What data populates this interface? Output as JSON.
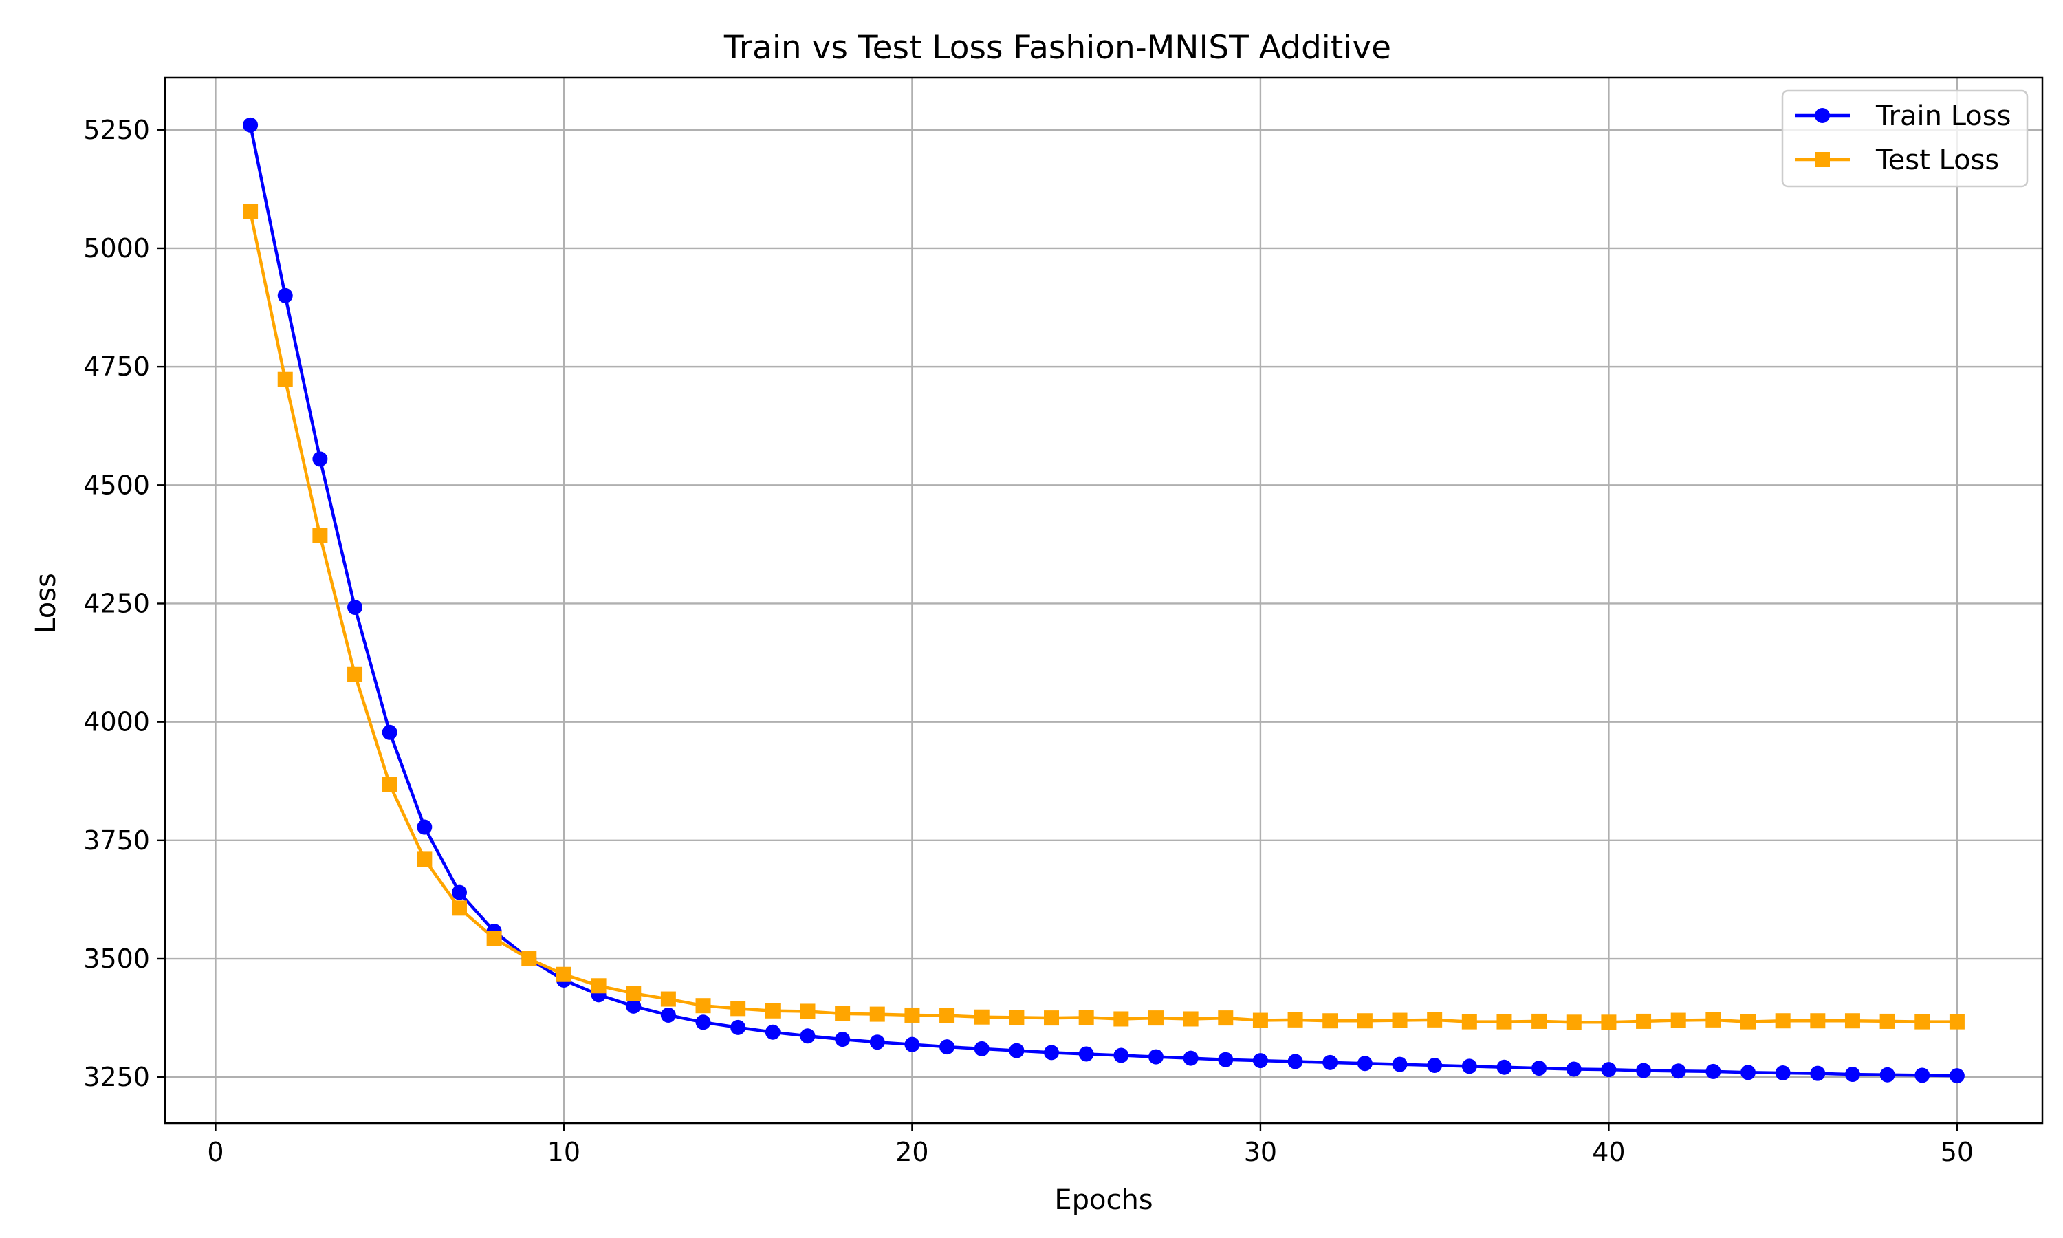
{
  "chart_data": {
    "type": "line",
    "title": "Train vs Test Loss Fashion-MNIST Additive",
    "xlabel": "Epochs",
    "ylabel": "Loss",
    "x": [
      1,
      2,
      3,
      4,
      5,
      6,
      7,
      8,
      9,
      10,
      11,
      12,
      13,
      14,
      15,
      16,
      17,
      18,
      19,
      20,
      21,
      22,
      23,
      24,
      25,
      26,
      27,
      28,
      29,
      30,
      31,
      32,
      33,
      34,
      35,
      36,
      37,
      38,
      39,
      40,
      41,
      42,
      43,
      44,
      45,
      46,
      47,
      48,
      49,
      50
    ],
    "series": [
      {
        "name": "Train Loss",
        "color": "#0000ff",
        "marker": "circle",
        "values": [
          5260,
          4900,
          4555,
          4242,
          3978,
          3778,
          3640,
          3558,
          3500,
          3455,
          3424,
          3400,
          3381,
          3366,
          3355,
          3345,
          3337,
          3330,
          3324,
          3319,
          3314,
          3310,
          3306,
          3302,
          3299,
          3296,
          3293,
          3290,
          3287,
          3285,
          3283,
          3281,
          3279,
          3277,
          3275,
          3273,
          3271,
          3269,
          3267,
          3266,
          3264,
          3263,
          3262,
          3260,
          3259,
          3258,
          3256,
          3255,
          3254,
          3253
        ]
      },
      {
        "name": "Test Loss",
        "color": "#ffa500",
        "marker": "square",
        "values": [
          5077,
          4723,
          4393,
          4100,
          3868,
          3710,
          3607,
          3543,
          3500,
          3467,
          3443,
          3427,
          3415,
          3401,
          3395,
          3390,
          3389,
          3384,
          3383,
          3381,
          3380,
          3377,
          3376,
          3375,
          3376,
          3373,
          3375,
          3373,
          3375,
          3370,
          3371,
          3369,
          3369,
          3370,
          3371,
          3367,
          3367,
          3368,
          3366,
          3366,
          3368,
          3370,
          3371,
          3367,
          3369,
          3369,
          3369,
          3368,
          3367,
          3367
        ]
      }
    ],
    "xlim": [
      -1.45,
      52.45
    ],
    "ylim": [
      3153,
      5360
    ],
    "xticks": [
      0,
      10,
      20,
      30,
      40,
      50
    ],
    "xtick_labels": [
      "0",
      "10",
      "20",
      "30",
      "40",
      "50"
    ],
    "yticks": [
      3250,
      3500,
      3750,
      4000,
      4250,
      4500,
      4750,
      5000,
      5250
    ],
    "ytick_labels": [
      "3250",
      "3500",
      "3750",
      "4000",
      "4250",
      "4500",
      "4750",
      "5000",
      "5250"
    ],
    "grid": true,
    "legend_position": "top-right"
  }
}
